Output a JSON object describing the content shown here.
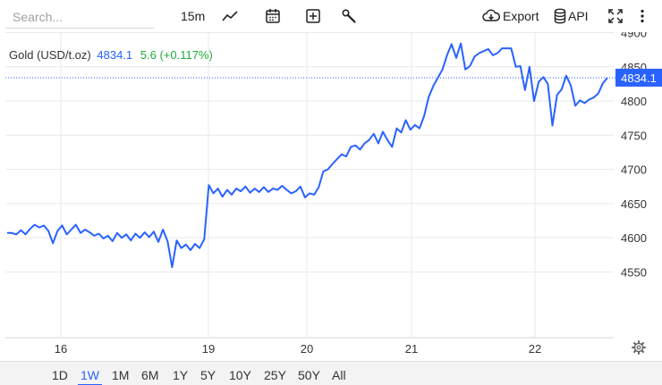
{
  "toolbar": {
    "search_placeholder": "Search...",
    "interval": "15m",
    "export_label": "Export",
    "api_label": "API",
    "icons": [
      "line-chart-icon",
      "calendar-icon",
      "plus-square-icon",
      "wrench-icon",
      "cloud-download-icon",
      "database-icon",
      "fullscreen-icon",
      "more-vertical-icon"
    ]
  },
  "legend": {
    "symbol": "Gold (USD/t.oz)",
    "last": "4834.1",
    "change": "5.6 (+0.117%)"
  },
  "ranges": {
    "items": [
      "1D",
      "1W",
      "1M",
      "6M",
      "1Y",
      "5Y",
      "10Y",
      "25Y",
      "50Y",
      "All"
    ],
    "active": "1W"
  },
  "colors": {
    "line": "#2962ff",
    "positive": "#22ab3c",
    "grid": "#e9e9e9"
  },
  "chart_data": {
    "type": "line",
    "series": [
      {
        "values": [
          4607,
          4607,
          4605,
          4611,
          4605,
          4613,
          4619,
          4615,
          4618,
          4610,
          4592,
          4610,
          4618,
          4605,
          4612,
          4619,
          4607,
          4612,
          4608,
          4603,
          4606,
          4599,
          4603,
          4595,
          4607,
          4600,
          4605,
          4596,
          4606,
          4600,
          4608,
          4601,
          4609,
          4594,
          4612,
          4595,
          4557,
          4596,
          4585,
          4590,
          4582,
          4591,
          4585,
          4598,
          4677,
          4665,
          4672,
          4660,
          4670,
          4663,
          4672,
          4668,
          4675,
          4666,
          4672,
          4667,
          4674,
          4667,
          4672,
          4670,
          4676,
          4670,
          4665,
          4668,
          4675,
          4659,
          4665,
          4663,
          4674,
          4697,
          4700,
          4708,
          4715,
          4722,
          4719,
          4733,
          4735,
          4729,
          4738,
          4743,
          4752,
          4738,
          4755,
          4743,
          4733,
          4760,
          4754,
          4772,
          4758,
          4765,
          4760,
          4778,
          4806,
          4822,
          4834,
          4846,
          4867,
          4883,
          4863,
          4884,
          4846,
          4851,
          4865,
          4870,
          4873,
          4876,
          4867,
          4870,
          4877,
          4877,
          4877,
          4850,
          4851,
          4816,
          4850,
          4800,
          4828,
          4835,
          4825,
          4764,
          4809,
          4817,
          4837,
          4823,
          4793,
          4801,
          4797,
          4802,
          4805,
          4811,
          4826,
          4834.1
        ]
      }
    ],
    "ylim": [
      4520,
      4930
    ],
    "yticks": [
      4550,
      4600,
      4650,
      4700,
      4750,
      4800,
      4850,
      4900
    ],
    "xtick_labels": [
      "16",
      "19",
      "20",
      "21",
      "22"
    ],
    "last_value_label": "4834.1",
    "grid": true
  }
}
